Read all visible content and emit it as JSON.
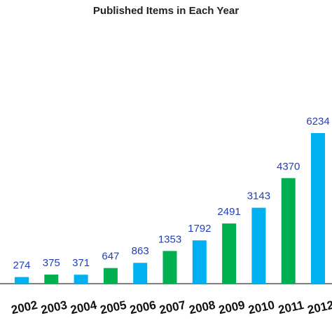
{
  "chart_data": {
    "type": "bar",
    "title": "Published Items in Each Year",
    "categories": [
      "2002",
      "2003",
      "2004",
      "2005",
      "2006",
      "2007",
      "2008",
      "2009",
      "2010",
      "2011",
      "2012"
    ],
    "values": [
      274,
      375,
      371,
      647,
      863,
      1353,
      1792,
      2491,
      3143,
      4370,
      6234
    ],
    "colors": [
      "#00b0f0",
      "#00b050",
      "#00b0f0",
      "#00b050",
      "#00b0f0",
      "#00b050",
      "#00b0f0",
      "#00b050",
      "#00b0f0",
      "#00b050",
      "#00b0f0"
    ]
  }
}
